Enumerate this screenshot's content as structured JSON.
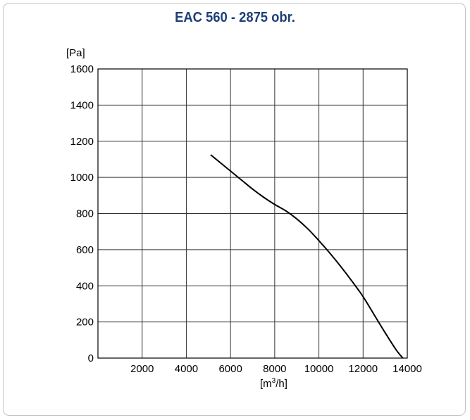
{
  "chart_data": {
    "type": "line",
    "title": "EAC 560 - 2875 obr.",
    "ylabel": "[Pa]",
    "xlabel_pre": "[m",
    "xlabel_sup": "3",
    "xlabel_post": "/h]",
    "xlim": [
      0,
      14000
    ],
    "ylim": [
      0,
      1600
    ],
    "xticks": [
      2000,
      4000,
      6000,
      8000,
      10000,
      12000,
      14000
    ],
    "yticks": [
      0,
      200,
      400,
      600,
      800,
      1000,
      1200,
      1400,
      1600
    ],
    "grid": true,
    "colors": {
      "title": "#1f3f78",
      "curve": "#000000",
      "grid": "#333333"
    },
    "series": [
      {
        "x": [
          5100,
          5600,
          6000,
          6500,
          7000,
          7500,
          8000,
          8500,
          9000,
          9500,
          10000,
          10500,
          11000,
          11500,
          12000,
          12500,
          13000,
          13500,
          13800
        ],
        "y": [
          1125,
          1075,
          1035,
          985,
          935,
          890,
          850,
          815,
          770,
          715,
          650,
          580,
          505,
          425,
          340,
          240,
          140,
          45,
          0
        ]
      }
    ]
  }
}
